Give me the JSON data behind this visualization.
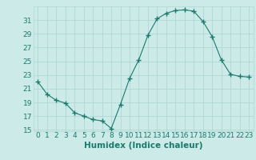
{
  "x": [
    0,
    1,
    2,
    3,
    4,
    5,
    6,
    7,
    8,
    9,
    10,
    11,
    12,
    13,
    14,
    15,
    16,
    17,
    18,
    19,
    20,
    21,
    22,
    23
  ],
  "y": [
    22.0,
    20.2,
    19.3,
    18.9,
    17.5,
    17.0,
    16.5,
    16.3,
    15.2,
    18.7,
    22.5,
    25.2,
    28.8,
    31.2,
    32.0,
    32.4,
    32.5,
    32.3,
    30.8,
    28.6,
    25.2,
    23.1,
    22.8,
    22.7
  ],
  "title": "",
  "xlabel": "Humidex (Indice chaleur)",
  "ylabel": "",
  "ylim": [
    14.8,
    33.0
  ],
  "xlim": [
    -0.5,
    23.5
  ],
  "yticks": [
    15,
    17,
    19,
    21,
    23,
    25,
    27,
    29,
    31
  ],
  "xticks": [
    0,
    1,
    2,
    3,
    4,
    5,
    6,
    7,
    8,
    9,
    10,
    11,
    12,
    13,
    14,
    15,
    16,
    17,
    18,
    19,
    20,
    21,
    22,
    23
  ],
  "line_color": "#1a7a6e",
  "marker": "+",
  "marker_size": 4,
  "bg_color": "#cceae7",
  "grid_color": "#b0d8d4",
  "text_color": "#1a7a6e",
  "axis_label_fontsize": 7.5,
  "tick_fontsize": 6.5
}
